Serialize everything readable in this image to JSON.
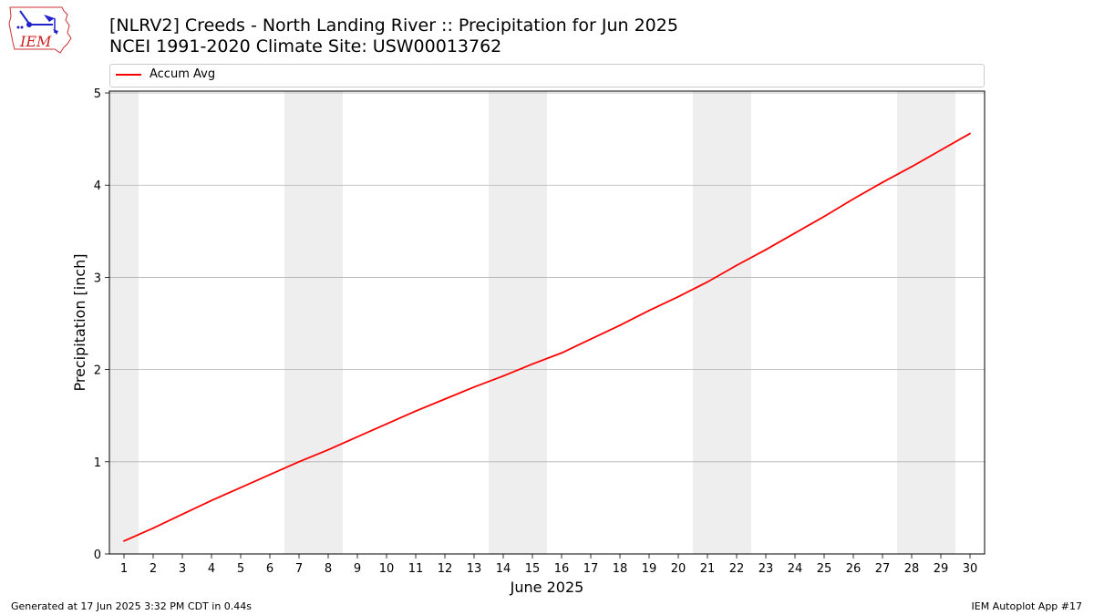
{
  "title": {
    "line1": "[NLRV2] Creeds - North Landing River :: Precipitation for Jun 2025",
    "line2": "NCEI 1991-2020 Climate Site: USW00013762"
  },
  "logo": {
    "text": "IEM",
    "icon": "iem-logo-icon"
  },
  "legend": {
    "items": [
      {
        "label": "Accum Avg",
        "color": "#ff0000"
      }
    ],
    "placement": "top"
  },
  "footer": {
    "generated": "Generated at 17 Jun 2025 3:32 PM CDT in 0.44s",
    "app": "IEM Autoplot App #17"
  },
  "chart_data": {
    "type": "line",
    "xlabel": "June 2025",
    "ylabel": "Precipitation [inch]",
    "xlim": [
      0.5,
      30.5
    ],
    "ylim": [
      0,
      5.02
    ],
    "yticks": [
      0,
      1,
      2,
      3,
      4,
      5
    ],
    "grid": "y",
    "x": [
      1,
      2,
      3,
      4,
      5,
      6,
      7,
      8,
      9,
      10,
      11,
      12,
      13,
      14,
      15,
      16,
      17,
      18,
      19,
      20,
      21,
      22,
      23,
      24,
      25,
      26,
      27,
      28,
      29,
      30
    ],
    "x_tick_labels": [
      "1",
      "2",
      "3",
      "4",
      "5",
      "6",
      "7",
      "8",
      "9",
      "10",
      "11",
      "12",
      "13",
      "14",
      "15",
      "16",
      "17",
      "18",
      "19",
      "20",
      "21",
      "22",
      "23",
      "24",
      "25",
      "26",
      "27",
      "28",
      "29",
      "30"
    ],
    "weekend_bands": [
      [
        0.5,
        1.5
      ],
      [
        6.5,
        8.5
      ],
      [
        13.5,
        15.5
      ],
      [
        20.5,
        22.5
      ],
      [
        27.5,
        29.5
      ]
    ],
    "band_color": "#eeeeee",
    "series": [
      {
        "name": "Accum Avg",
        "color": "#ff0000",
        "values": [
          0.14,
          0.28,
          0.43,
          0.58,
          0.72,
          0.86,
          1.0,
          1.13,
          1.27,
          1.41,
          1.55,
          1.68,
          1.81,
          1.93,
          2.06,
          2.18,
          2.33,
          2.48,
          2.64,
          2.79,
          2.95,
          3.13,
          3.3,
          3.48,
          3.66,
          3.85,
          4.03,
          4.2,
          4.38,
          4.56
        ]
      }
    ]
  }
}
